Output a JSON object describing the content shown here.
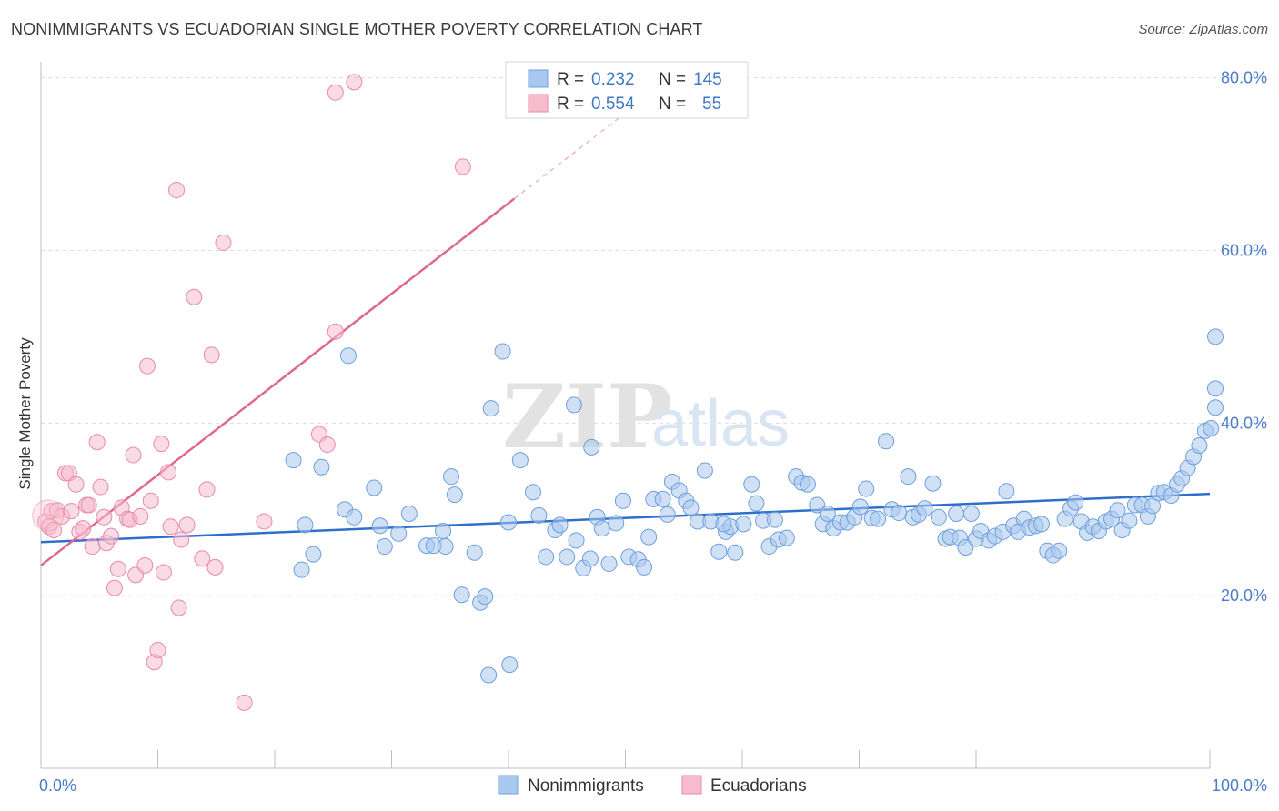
{
  "header": {
    "title": "NONIMMIGRANTS VS ECUADORIAN SINGLE MOTHER POVERTY CORRELATION CHART",
    "source": "Source: ZipAtlas.com"
  },
  "watermark": {
    "zip": "ZIP",
    "atlas": "atlas"
  },
  "colors": {
    "blue_fill": "#a9c8ef",
    "blue_stroke": "#6d9fdc",
    "blue_line": "#2f6fcb",
    "pink_fill": "#f6bccd",
    "pink_stroke": "#e98aa8",
    "pink_line": "#e0688f",
    "grid": "#dddddd",
    "tick_text": "#4a7cc9"
  },
  "legend": {
    "rows": [
      {
        "r_label": "R =",
        "r_value": "0.232",
        "n_label": "N =",
        "n_value": "145"
      },
      {
        "r_label": "R =",
        "r_value": "0.554",
        "n_label": "N =",
        "n_value": "55"
      }
    ]
  },
  "bottom_legend": {
    "items": [
      "Nonimmigrants",
      "Ecuadorians"
    ]
  },
  "chart_data": {
    "type": "scatter",
    "title": "NONIMMIGRANTS VS ECUADORIAN SINGLE MOTHER POVERTY CORRELATION CHART",
    "xlabel": "",
    "ylabel": "Single Mother Poverty",
    "xlim": [
      0,
      100
    ],
    "ylim": [
      0,
      81
    ],
    "x_tick_labels": [
      {
        "value": 0,
        "label": "0.0%"
      },
      {
        "value": 100,
        "label": "100.0%"
      }
    ],
    "y_tick_labels": [
      {
        "value": 20,
        "label": "20.0%"
      },
      {
        "value": 40,
        "label": "40.0%"
      },
      {
        "value": 60,
        "label": "60.0%"
      },
      {
        "value": 80,
        "label": "80.0%"
      }
    ],
    "grid": true,
    "legend_position": "top-center",
    "series": [
      {
        "name": "Nonimmigrants",
        "color": "#a9c8ef",
        "trend": {
          "x0": 0,
          "y0": 26.2,
          "x1": 100,
          "y1": 31.8
        },
        "points": [
          [
            21.6,
            35.7
          ],
          [
            22.3,
            23.0
          ],
          [
            22.6,
            28.2
          ],
          [
            23.3,
            24.8
          ],
          [
            24.0,
            34.9
          ],
          [
            26.3,
            47.8
          ],
          [
            26.0,
            30.0
          ],
          [
            26.8,
            29.1
          ],
          [
            28.5,
            32.5
          ],
          [
            29.0,
            28.1
          ],
          [
            29.4,
            25.7
          ],
          [
            30.6,
            27.2
          ],
          [
            31.5,
            29.5
          ],
          [
            33.0,
            25.8
          ],
          [
            33.6,
            25.8
          ],
          [
            34.4,
            27.5
          ],
          [
            34.6,
            25.7
          ],
          [
            35.1,
            33.8
          ],
          [
            35.4,
            31.7
          ],
          [
            36.0,
            20.1
          ],
          [
            37.1,
            25.0
          ],
          [
            37.6,
            19.2
          ],
          [
            38.0,
            19.9
          ],
          [
            38.5,
            41.7
          ],
          [
            38.3,
            10.8
          ],
          [
            39.5,
            48.3
          ],
          [
            40.1,
            12.0
          ],
          [
            40.0,
            28.5
          ],
          [
            41.0,
            35.7
          ],
          [
            42.1,
            32.0
          ],
          [
            42.6,
            29.3
          ],
          [
            43.2,
            24.5
          ],
          [
            44.0,
            27.6
          ],
          [
            44.4,
            28.2
          ],
          [
            45.0,
            24.5
          ],
          [
            45.6,
            42.1
          ],
          [
            45.8,
            26.4
          ],
          [
            46.4,
            23.2
          ],
          [
            47.1,
            37.2
          ],
          [
            47.6,
            29.1
          ],
          [
            48.0,
            27.8
          ],
          [
            48.6,
            23.7
          ],
          [
            49.2,
            28.4
          ],
          [
            49.8,
            31.0
          ],
          [
            50.3,
            24.5
          ],
          [
            51.1,
            24.2
          ],
          [
            51.6,
            23.3
          ],
          [
            52.0,
            26.8
          ],
          [
            52.4,
            31.2
          ],
          [
            53.2,
            31.2
          ],
          [
            53.6,
            29.4
          ],
          [
            54.0,
            33.2
          ],
          [
            54.6,
            32.2
          ],
          [
            55.2,
            31.0
          ],
          [
            55.6,
            30.2
          ],
          [
            56.2,
            28.6
          ],
          [
            56.8,
            34.5
          ],
          [
            57.3,
            28.6
          ],
          [
            58.0,
            25.1
          ],
          [
            58.6,
            27.4
          ],
          [
            59.0,
            28.0
          ],
          [
            59.4,
            25.0
          ],
          [
            60.1,
            28.3
          ],
          [
            60.8,
            32.9
          ],
          [
            61.2,
            30.7
          ],
          [
            61.8,
            28.7
          ],
          [
            62.3,
            25.7
          ],
          [
            62.8,
            28.8
          ],
          [
            63.1,
            26.5
          ],
          [
            63.8,
            26.7
          ],
          [
            64.6,
            33.8
          ],
          [
            65.1,
            33.1
          ],
          [
            65.6,
            32.9
          ],
          [
            66.4,
            30.5
          ],
          [
            66.9,
            28.3
          ],
          [
            67.3,
            29.5
          ],
          [
            67.8,
            27.8
          ],
          [
            68.4,
            28.5
          ],
          [
            69.0,
            28.5
          ],
          [
            69.6,
            29.1
          ],
          [
            70.1,
            30.3
          ],
          [
            70.6,
            32.4
          ],
          [
            71.1,
            29.0
          ],
          [
            71.6,
            28.9
          ],
          [
            72.3,
            37.9
          ],
          [
            72.8,
            30.0
          ],
          [
            73.4,
            29.6
          ],
          [
            74.2,
            33.8
          ],
          [
            74.6,
            29.1
          ],
          [
            75.1,
            29.4
          ],
          [
            75.6,
            30.1
          ],
          [
            76.3,
            33.0
          ],
          [
            76.8,
            29.1
          ],
          [
            77.4,
            26.6
          ],
          [
            77.8,
            26.8
          ],
          [
            78.3,
            29.5
          ],
          [
            78.6,
            26.7
          ],
          [
            79.1,
            25.6
          ],
          [
            79.6,
            29.5
          ],
          [
            80.0,
            26.6
          ],
          [
            80.4,
            27.5
          ],
          [
            81.1,
            26.4
          ],
          [
            81.6,
            26.9
          ],
          [
            82.3,
            27.4
          ],
          [
            82.6,
            32.1
          ],
          [
            83.2,
            28.1
          ],
          [
            83.6,
            27.4
          ],
          [
            84.1,
            28.9
          ],
          [
            84.6,
            27.9
          ],
          [
            85.1,
            28.1
          ],
          [
            85.6,
            28.3
          ],
          [
            86.1,
            25.2
          ],
          [
            86.6,
            24.7
          ],
          [
            87.1,
            25.2
          ],
          [
            87.6,
            28.9
          ],
          [
            88.1,
            30.1
          ],
          [
            88.5,
            30.8
          ],
          [
            89.0,
            28.6
          ],
          [
            89.5,
            27.3
          ],
          [
            90.0,
            28.0
          ],
          [
            90.5,
            27.5
          ],
          [
            91.1,
            28.6
          ],
          [
            91.6,
            28.9
          ],
          [
            92.1,
            29.9
          ],
          [
            92.5,
            27.6
          ],
          [
            93.1,
            28.7
          ],
          [
            93.6,
            30.5
          ],
          [
            94.2,
            30.5
          ],
          [
            94.7,
            29.2
          ],
          [
            95.1,
            30.4
          ],
          [
            95.6,
            31.9
          ],
          [
            96.1,
            32.0
          ],
          [
            96.7,
            31.6
          ],
          [
            97.2,
            32.9
          ],
          [
            97.6,
            33.6
          ],
          [
            98.1,
            34.8
          ],
          [
            98.6,
            36.1
          ],
          [
            99.1,
            37.4
          ],
          [
            99.6,
            39.1
          ],
          [
            100.1,
            39.4
          ],
          [
            100.6,
            41.8
          ],
          [
            101.0,
            44.0
          ],
          [
            101.4,
            50.0
          ],
          [
            47.0,
            24.3
          ],
          [
            58.4,
            28.3
          ]
        ]
      },
      {
        "name": "Ecuadorians",
        "color": "#f6bccd",
        "trend": {
          "x0": 0,
          "y0": 23.5,
          "x1": 40.5,
          "y1": 66.0,
          "dash_to_x": 52,
          "dash_to_y": 78
        },
        "points": [
          [
            0.4,
            28.6
          ],
          [
            0.7,
            28.0
          ],
          [
            0.9,
            29.8
          ],
          [
            1.1,
            27.6
          ],
          [
            1.4,
            29.9
          ],
          [
            1.8,
            29.2
          ],
          [
            2.1,
            34.2
          ],
          [
            2.4,
            34.2
          ],
          [
            2.6,
            29.8
          ],
          [
            3.0,
            32.9
          ],
          [
            3.3,
            27.4
          ],
          [
            3.6,
            27.8
          ],
          [
            3.9,
            30.5
          ],
          [
            4.1,
            30.5
          ],
          [
            4.4,
            25.7
          ],
          [
            4.8,
            37.8
          ],
          [
            5.1,
            32.6
          ],
          [
            5.4,
            29.1
          ],
          [
            5.6,
            26.1
          ],
          [
            6.0,
            26.9
          ],
          [
            6.3,
            20.9
          ],
          [
            6.6,
            23.1
          ],
          [
            6.9,
            30.2
          ],
          [
            7.4,
            28.9
          ],
          [
            7.6,
            28.8
          ],
          [
            7.9,
            36.3
          ],
          [
            8.1,
            22.4
          ],
          [
            8.5,
            29.2
          ],
          [
            8.9,
            23.5
          ],
          [
            9.1,
            46.6
          ],
          [
            9.4,
            31.0
          ],
          [
            9.7,
            12.3
          ],
          [
            10.0,
            13.7
          ],
          [
            10.3,
            37.6
          ],
          [
            10.5,
            22.7
          ],
          [
            10.9,
            34.3
          ],
          [
            11.1,
            28.0
          ],
          [
            11.6,
            67.0
          ],
          [
            11.8,
            18.6
          ],
          [
            12.0,
            26.5
          ],
          [
            12.5,
            28.2
          ],
          [
            13.1,
            54.6
          ],
          [
            13.8,
            24.3
          ],
          [
            14.2,
            32.3
          ],
          [
            14.6,
            47.9
          ],
          [
            14.9,
            23.3
          ],
          [
            15.6,
            60.9
          ],
          [
            17.4,
            7.6
          ],
          [
            19.1,
            28.6
          ],
          [
            23.8,
            38.7
          ],
          [
            24.5,
            37.5
          ],
          [
            25.2,
            50.6
          ],
          [
            25.2,
            78.3
          ],
          [
            26.8,
            79.5
          ],
          [
            36.1,
            69.7
          ]
        ]
      }
    ]
  }
}
